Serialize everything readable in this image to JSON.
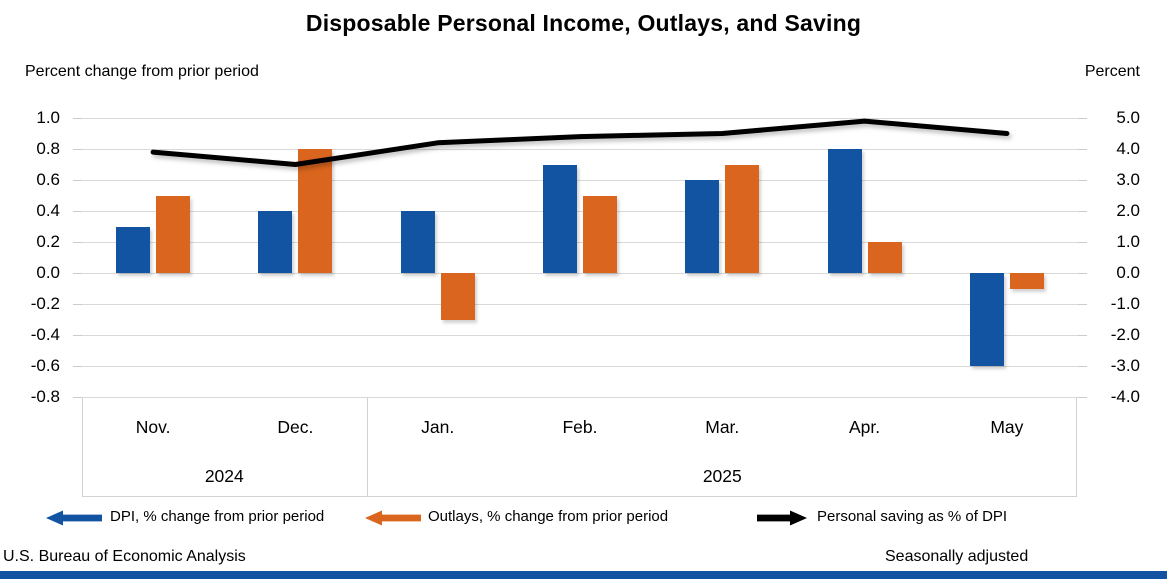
{
  "header": {
    "title": "Disposable Personal Income, Outlays, and Saving"
  },
  "footer": {
    "left": "U.S. Bureau of Economic Analysis",
    "right": "Seasonally adjusted"
  },
  "colors": {
    "dpi_bar": "#1254a1",
    "outlays_bar": "#d9651e",
    "saving_line": "#000000",
    "gridline": "#d9d9d9",
    "category_box_border": "#d2d2d2",
    "bottom_bar": "#1254a1"
  },
  "chart_data": {
    "type": "bar",
    "title": "Disposable Personal Income, Outlays, and Saving",
    "categories": [
      "Nov.",
      "Dec.",
      "Jan.",
      "Feb.",
      "Mar.",
      "Apr.",
      "May"
    ],
    "year_groups": [
      {
        "label": "2024",
        "from": 0,
        "to": 2
      },
      {
        "label": "2025",
        "from": 2,
        "to": 7
      }
    ],
    "series": [
      {
        "name": "DPI, % change from prior period",
        "type": "bar",
        "axis": "left",
        "color": "#1254a1",
        "values": [
          0.3,
          0.4,
          0.4,
          0.7,
          0.6,
          0.8,
          -0.6
        ]
      },
      {
        "name": "Outlays, % change from prior period",
        "type": "bar",
        "axis": "left",
        "color": "#d9651e",
        "values": [
          0.5,
          0.8,
          -0.3,
          0.5,
          0.7,
          0.2,
          -0.1
        ]
      },
      {
        "name": "Personal saving as % of DPI",
        "type": "line",
        "axis": "right",
        "color": "#000000",
        "values": [
          3.9,
          3.5,
          4.2,
          4.4,
          4.5,
          4.9,
          4.5
        ]
      }
    ],
    "left_axis": {
      "label": "Percent change from prior period",
      "min": -0.8,
      "max": 1.0,
      "step": 0.2,
      "ticks": [
        "1.0",
        "0.8",
        "0.6",
        "0.4",
        "0.2",
        "0.0",
        "-0.2",
        "-0.4",
        "-0.6",
        "-0.8"
      ]
    },
    "right_axis": {
      "label": "Percent",
      "min": -4.0,
      "max": 5.0,
      "step": 1.0,
      "ticks": [
        "5.0",
        "4.0",
        "3.0",
        "2.0",
        "1.0",
        "0.0",
        "-1.0",
        "-2.0",
        "-3.0",
        "-4.0"
      ]
    },
    "grid": true,
    "legend_position": "bottom"
  }
}
